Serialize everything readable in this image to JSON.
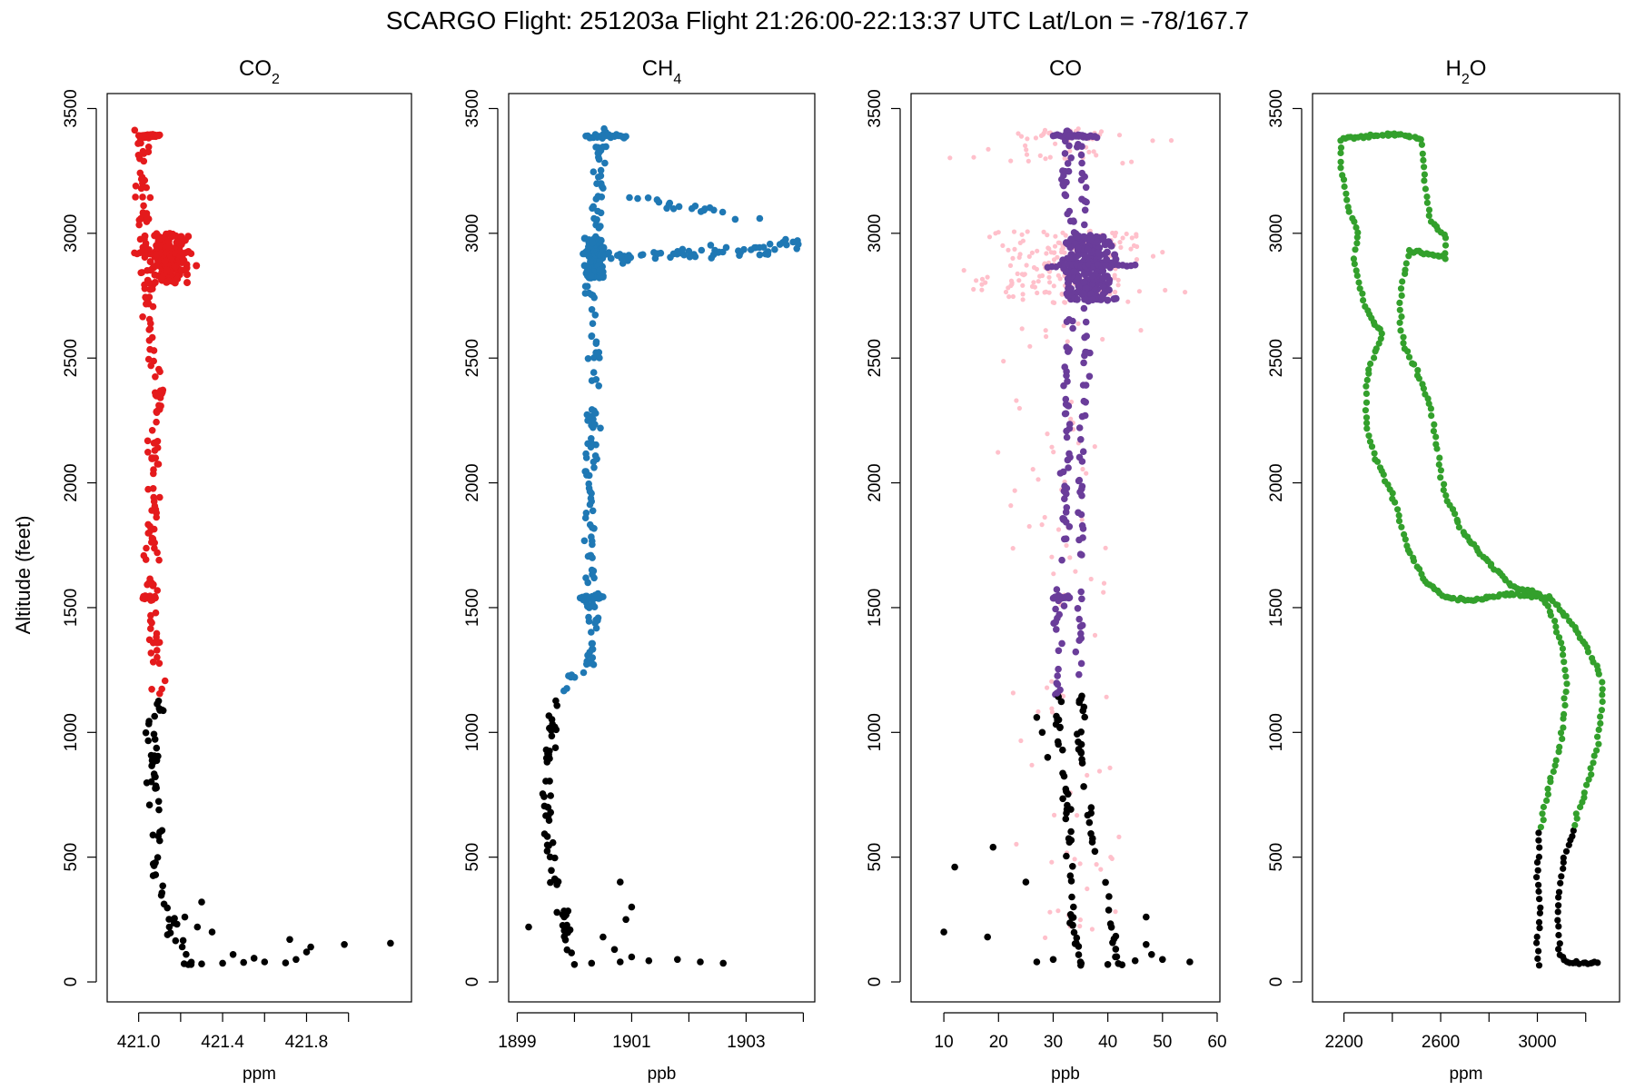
{
  "title": "SCARGO Flight: 251203a  Flight  21:26:00-22:13:37 UTC  Lat/Lon = -78/167.7",
  "colors": {
    "co2": "#e41a1c",
    "ch4": "#1f78b4",
    "co": "#6a3d9a",
    "co_raw": "#ffc0cb",
    "h2o": "#33a02c",
    "low": "#000000"
  },
  "chart_data": [
    {
      "type": "scatter",
      "title_main": "CO",
      "title_sub": "2",
      "xlabel": "ppm",
      "ylabel": "Altitude (feet)",
      "xlim": [
        420.85,
        422.3
      ],
      "ylim": [
        -80,
        3560
      ],
      "xticks": [
        421.0,
        421.4,
        421.8
      ],
      "xtick_labels": [
        "421.0",
        "421.4",
        "421.8"
      ],
      "xticks_minor": [
        421.2,
        421.6,
        422.0
      ],
      "yticks": [
        0,
        500,
        1000,
        1500,
        2000,
        2500,
        3000,
        3500
      ],
      "ytick_labels": [
        "0",
        "500",
        "1000",
        "1500",
        "2000",
        "2500",
        "3000",
        "3500"
      ],
      "color_key": "co2",
      "low_cutoff": 1150,
      "profile": [
        [
          70,
          421.25
        ],
        [
          90,
          421.22
        ],
        [
          130,
          421.2
        ],
        [
          200,
          421.17
        ],
        [
          300,
          421.13
        ],
        [
          400,
          421.1
        ],
        [
          500,
          421.08
        ],
        [
          700,
          421.07
        ],
        [
          900,
          421.07
        ],
        [
          1100,
          421.08
        ],
        [
          1300,
          421.09
        ],
        [
          1550,
          421.05
        ],
        [
          1800,
          421.06
        ],
        [
          2100,
          421.08
        ],
        [
          2400,
          421.09
        ],
        [
          2650,
          421.06
        ],
        [
          2850,
          421.04
        ],
        [
          3050,
          421.03
        ],
        [
          3250,
          421.02
        ],
        [
          3400,
          421.0
        ]
      ],
      "spread": 0.035,
      "n": 230,
      "near_surface": [
        [
          70,
          421.25
        ],
        [
          72,
          421.3
        ],
        [
          75,
          421.4
        ],
        [
          78,
          421.5
        ],
        [
          80,
          421.6
        ],
        [
          76,
          421.7
        ],
        [
          90,
          421.75
        ],
        [
          120,
          421.8
        ],
        [
          140,
          421.82
        ],
        [
          150,
          421.98
        ],
        [
          155,
          422.2
        ],
        [
          170,
          421.72
        ],
        [
          200,
          421.35
        ],
        [
          220,
          421.28
        ],
        [
          260,
          421.22
        ],
        [
          320,
          421.3
        ],
        [
          110,
          421.45
        ],
        [
          95,
          421.55
        ]
      ],
      "plume": [
        [
          2800,
          3000
        ],
        [
          420.98,
          421.32
        ],
        160
      ],
      "flat_segments": [
        [
          1540,
          421.02,
          421.08
        ],
        [
          2920,
          420.98,
          421.25
        ],
        [
          3390,
          421.0,
          421.1
        ]
      ]
    },
    {
      "type": "scatter",
      "title_main": "CH",
      "title_sub": "4",
      "xlabel": "ppb",
      "ylabel": "",
      "xlim": [
        1898.85,
        1904.2
      ],
      "ylim": [
        -80,
        3560
      ],
      "xticks": [
        1899,
        1901,
        1903
      ],
      "xtick_labels": [
        "1899",
        "1901",
        "1903"
      ],
      "xticks_minor": [
        1900,
        1902,
        1904
      ],
      "yticks": [
        0,
        500,
        1000,
        1500,
        2000,
        2500,
        3000,
        3500
      ],
      "ytick_labels": [
        "0",
        "500",
        "1000",
        "1500",
        "2000",
        "2500",
        "3000",
        "3500"
      ],
      "color_key": "ch4",
      "low_cutoff": 1150,
      "profile": [
        [
          70,
          1900.1
        ],
        [
          150,
          1899.9
        ],
        [
          300,
          1899.8
        ],
        [
          450,
          1899.6
        ],
        [
          600,
          1899.5
        ],
        [
          800,
          1899.5
        ],
        [
          1000,
          1899.6
        ],
        [
          1150,
          1899.7
        ],
        [
          1300,
          1900.3
        ],
        [
          1550,
          1900.3
        ],
        [
          1800,
          1900.3
        ],
        [
          2100,
          1900.25
        ],
        [
          2400,
          1900.35
        ],
        [
          2650,
          1900.3
        ],
        [
          2850,
          1900.3
        ],
        [
          3100,
          1900.4
        ],
        [
          3300,
          1900.45
        ],
        [
          3400,
          1900.5
        ]
      ],
      "spread": 0.12,
      "n": 220,
      "near_surface": [
        [
          70,
          1900.0
        ],
        [
          75,
          1900.3
        ],
        [
          80,
          1900.8
        ],
        [
          85,
          1901.3
        ],
        [
          90,
          1901.8
        ],
        [
          80,
          1902.2
        ],
        [
          75,
          1902.6
        ],
        [
          100,
          1901.0
        ],
        [
          130,
          1900.7
        ],
        [
          180,
          1900.5
        ],
        [
          220,
          1899.2
        ],
        [
          250,
          1900.9
        ],
        [
          300,
          1901.0
        ],
        [
          400,
          1900.8
        ]
      ],
      "plume": [
        [
          2820,
          2980
        ],
        [
          1900.1,
          1900.6
        ],
        160
      ],
      "tail": [
        [
          2900,
          1900.6,
          2950,
          1904.0,
          60
        ],
        [
          3150,
          1900.8,
          3050,
          1903.5,
          20
        ]
      ],
      "flat_segments": [
        [
          1540,
          1900.1,
          1900.5
        ],
        [
          2920,
          1900.15,
          1900.6
        ],
        [
          3390,
          1900.2,
          1900.9
        ]
      ]
    },
    {
      "type": "scatter",
      "title_main": "CO",
      "title_sub": "",
      "xlabel": "ppb",
      "ylabel": "",
      "xlim": [
        4,
        60.5
      ],
      "ylim": [
        -80,
        3560
      ],
      "xticks": [
        10,
        20,
        30,
        40,
        50,
        60
      ],
      "xtick_labels": [
        "10",
        "20",
        "30",
        "40",
        "50",
        "60"
      ],
      "xticks_minor": [],
      "yticks": [
        0,
        500,
        1000,
        1500,
        2000,
        2500,
        3000,
        3500
      ],
      "ytick_labels": [
        "0",
        "500",
        "1000",
        "1500",
        "2000",
        "2500",
        "3000",
        "3500"
      ],
      "color_key": "co",
      "raw_color_key": "co_raw",
      "low_cutoff": 1150,
      "profile": [
        [
          70,
          35
        ],
        [
          200,
          34
        ],
        [
          400,
          33
        ],
        [
          600,
          33
        ],
        [
          800,
          32
        ],
        [
          1000,
          31
        ],
        [
          1200,
          31
        ],
        [
          1400,
          31
        ],
        [
          1600,
          31
        ],
        [
          1800,
          32
        ],
        [
          2000,
          32
        ],
        [
          2200,
          33
        ],
        [
          2400,
          32
        ],
        [
          2600,
          33
        ],
        [
          2800,
          33
        ],
        [
          3000,
          34
        ],
        [
          3200,
          32
        ],
        [
          3400,
          33
        ]
      ],
      "profile2": [
        [
          70,
          42
        ],
        [
          300,
          40
        ],
        [
          600,
          37
        ],
        [
          900,
          35
        ],
        [
          1200,
          35
        ],
        [
          1500,
          35
        ],
        [
          1800,
          35
        ],
        [
          2100,
          35
        ],
        [
          2400,
          36
        ],
        [
          2700,
          36
        ],
        [
          2900,
          36
        ],
        [
          3100,
          36
        ],
        [
          3300,
          35
        ]
      ],
      "spread": 0.7,
      "n": 260,
      "raw_spread": 14,
      "raw_n": 330,
      "near_surface": [
        [
          80,
          27
        ],
        [
          90,
          30
        ],
        [
          80,
          35
        ],
        [
          70,
          40
        ],
        [
          85,
          45
        ],
        [
          90,
          50
        ],
        [
          80,
          55
        ],
        [
          200,
          10
        ],
        [
          180,
          18
        ],
        [
          460,
          12
        ],
        [
          540,
          19
        ],
        [
          400,
          25
        ],
        [
          1060,
          27
        ],
        [
          1000,
          28
        ],
        [
          900,
          29
        ],
        [
          260,
          47
        ],
        [
          150,
          47
        ],
        [
          110,
          48
        ]
      ],
      "plume": [
        [
          2730,
          2990
        ],
        [
          28,
          45
        ],
        200
      ],
      "flat_segments": [
        [
          1540,
          30,
          33
        ],
        [
          2870,
          29,
          45
        ],
        [
          3390,
          30,
          38
        ]
      ]
    },
    {
      "type": "scatter",
      "title_main": "H",
      "title_sub": "2",
      "title_tail": "O",
      "xlabel": "ppm",
      "ylabel": "",
      "xlim": [
        2070,
        3340
      ],
      "ylim": [
        -80,
        3560
      ],
      "xticks": [
        2200,
        2600,
        3000
      ],
      "xtick_labels": [
        "2200",
        "2600",
        "3000"
      ],
      "xticks_minor": [
        2400,
        2800,
        3200
      ],
      "yticks": [
        0,
        500,
        1000,
        1500,
        2000,
        2500,
        3000,
        3500
      ],
      "ytick_labels": [
        "0",
        "500",
        "1000",
        "1500",
        "2000",
        "2500",
        "3000",
        "3500"
      ],
      "color_key": "h2o",
      "low_cutoff": 620,
      "path": [
        [
          3250,
          80
        ],
        [
          3220,
          75
        ],
        [
          3120,
          80
        ],
        [
          3090,
          120
        ],
        [
          3085,
          300
        ],
        [
          3110,
          500
        ],
        [
          3160,
          650
        ],
        [
          3210,
          800
        ],
        [
          3250,
          950
        ],
        [
          3270,
          1150
        ],
        [
          3250,
          1250
        ],
        [
          3200,
          1350
        ],
        [
          3130,
          1450
        ],
        [
          3050,
          1540
        ],
        [
          2900,
          1555
        ],
        [
          2720,
          1530
        ],
        [
          2620,
          1540
        ],
        [
          2540,
          1600
        ],
        [
          2460,
          1740
        ],
        [
          2420,
          1900
        ],
        [
          2380,
          2000
        ],
        [
          2330,
          2100
        ],
        [
          2290,
          2250
        ],
        [
          2290,
          2400
        ],
        [
          2320,
          2500
        ],
        [
          2360,
          2600
        ],
        [
          2320,
          2650
        ],
        [
          2290,
          2700
        ],
        [
          2260,
          2800
        ],
        [
          2240,
          2900
        ],
        [
          2260,
          3000
        ],
        [
          2220,
          3100
        ],
        [
          2200,
          3200
        ],
        [
          2180,
          3300
        ],
        [
          2190,
          3380
        ],
        [
          2300,
          3390
        ],
        [
          2430,
          3395
        ],
        [
          2520,
          3380
        ],
        [
          2530,
          3300
        ],
        [
          2540,
          3150
        ],
        [
          2560,
          3050
        ],
        [
          2620,
          2980
        ],
        [
          2620,
          2900
        ],
        [
          2540,
          2920
        ],
        [
          2470,
          2930
        ],
        [
          2440,
          2800
        ],
        [
          2430,
          2650
        ],
        [
          2450,
          2550
        ],
        [
          2500,
          2450
        ],
        [
          2560,
          2300
        ],
        [
          2590,
          2100
        ],
        [
          2620,
          1950
        ],
        [
          2690,
          1800
        ],
        [
          2780,
          1700
        ],
        [
          2900,
          1580
        ],
        [
          3000,
          1560
        ],
        [
          3050,
          1500
        ],
        [
          3100,
          1350
        ],
        [
          3120,
          1200
        ],
        [
          3110,
          1050
        ],
        [
          3080,
          900
        ],
        [
          3040,
          750
        ],
        [
          3010,
          600
        ],
        [
          3000,
          450
        ],
        [
          3010,
          300
        ],
        [
          3000,
          150
        ],
        [
          3010,
          70
        ]
      ],
      "n": 420
    }
  ]
}
